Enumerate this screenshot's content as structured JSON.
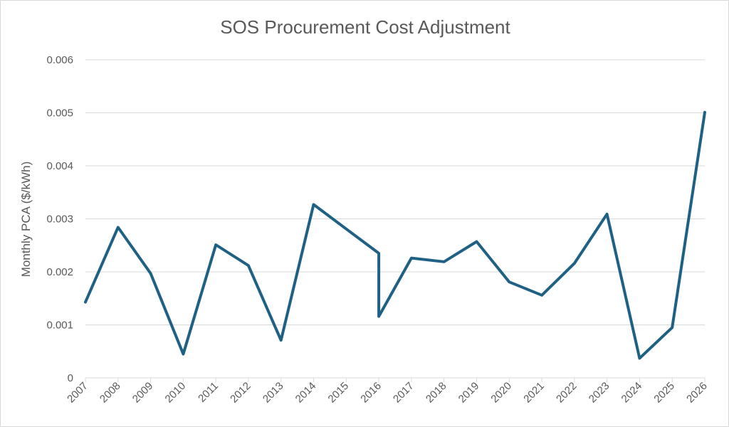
{
  "chart_data": {
    "type": "line",
    "title": "SOS Procurement Cost Adjustment",
    "xlabel": "",
    "ylabel": "Monthly PCA ($/kWh)",
    "ylim": [
      0,
      0.006
    ],
    "y_ticks": [
      "0",
      "0.001",
      "0.002",
      "0.003",
      "0.004",
      "0.005",
      "0.006"
    ],
    "x_ticks": [
      "2007",
      "2008",
      "2009",
      "2010",
      "2011",
      "2012",
      "2013",
      "2014",
      "2015",
      "2016",
      "2017",
      "2018",
      "2019",
      "2020",
      "2021",
      "2022",
      "2023",
      "2024",
      "2025",
      "2026"
    ],
    "xlim": [
      2007,
      2026
    ],
    "grid": true,
    "legend": "none",
    "series": [
      {
        "color": "#1f6184",
        "x": [
          2007,
          2008,
          2009,
          2010,
          2011,
          2012,
          2013,
          2014,
          2015,
          2016,
          2016,
          2017,
          2018,
          2019,
          2020,
          2021,
          2022,
          2023,
          2024,
          2025,
          2026
        ],
        "values": [
          0.00143,
          0.00284,
          0.00197,
          0.00045,
          0.00251,
          0.00212,
          0.00071,
          0.00327,
          0.00281,
          0.00235,
          0.00116,
          0.00226,
          0.00219,
          0.00257,
          0.00181,
          0.00156,
          0.00216,
          0.00309,
          0.00037,
          0.00095,
          0.00501
        ]
      }
    ]
  }
}
